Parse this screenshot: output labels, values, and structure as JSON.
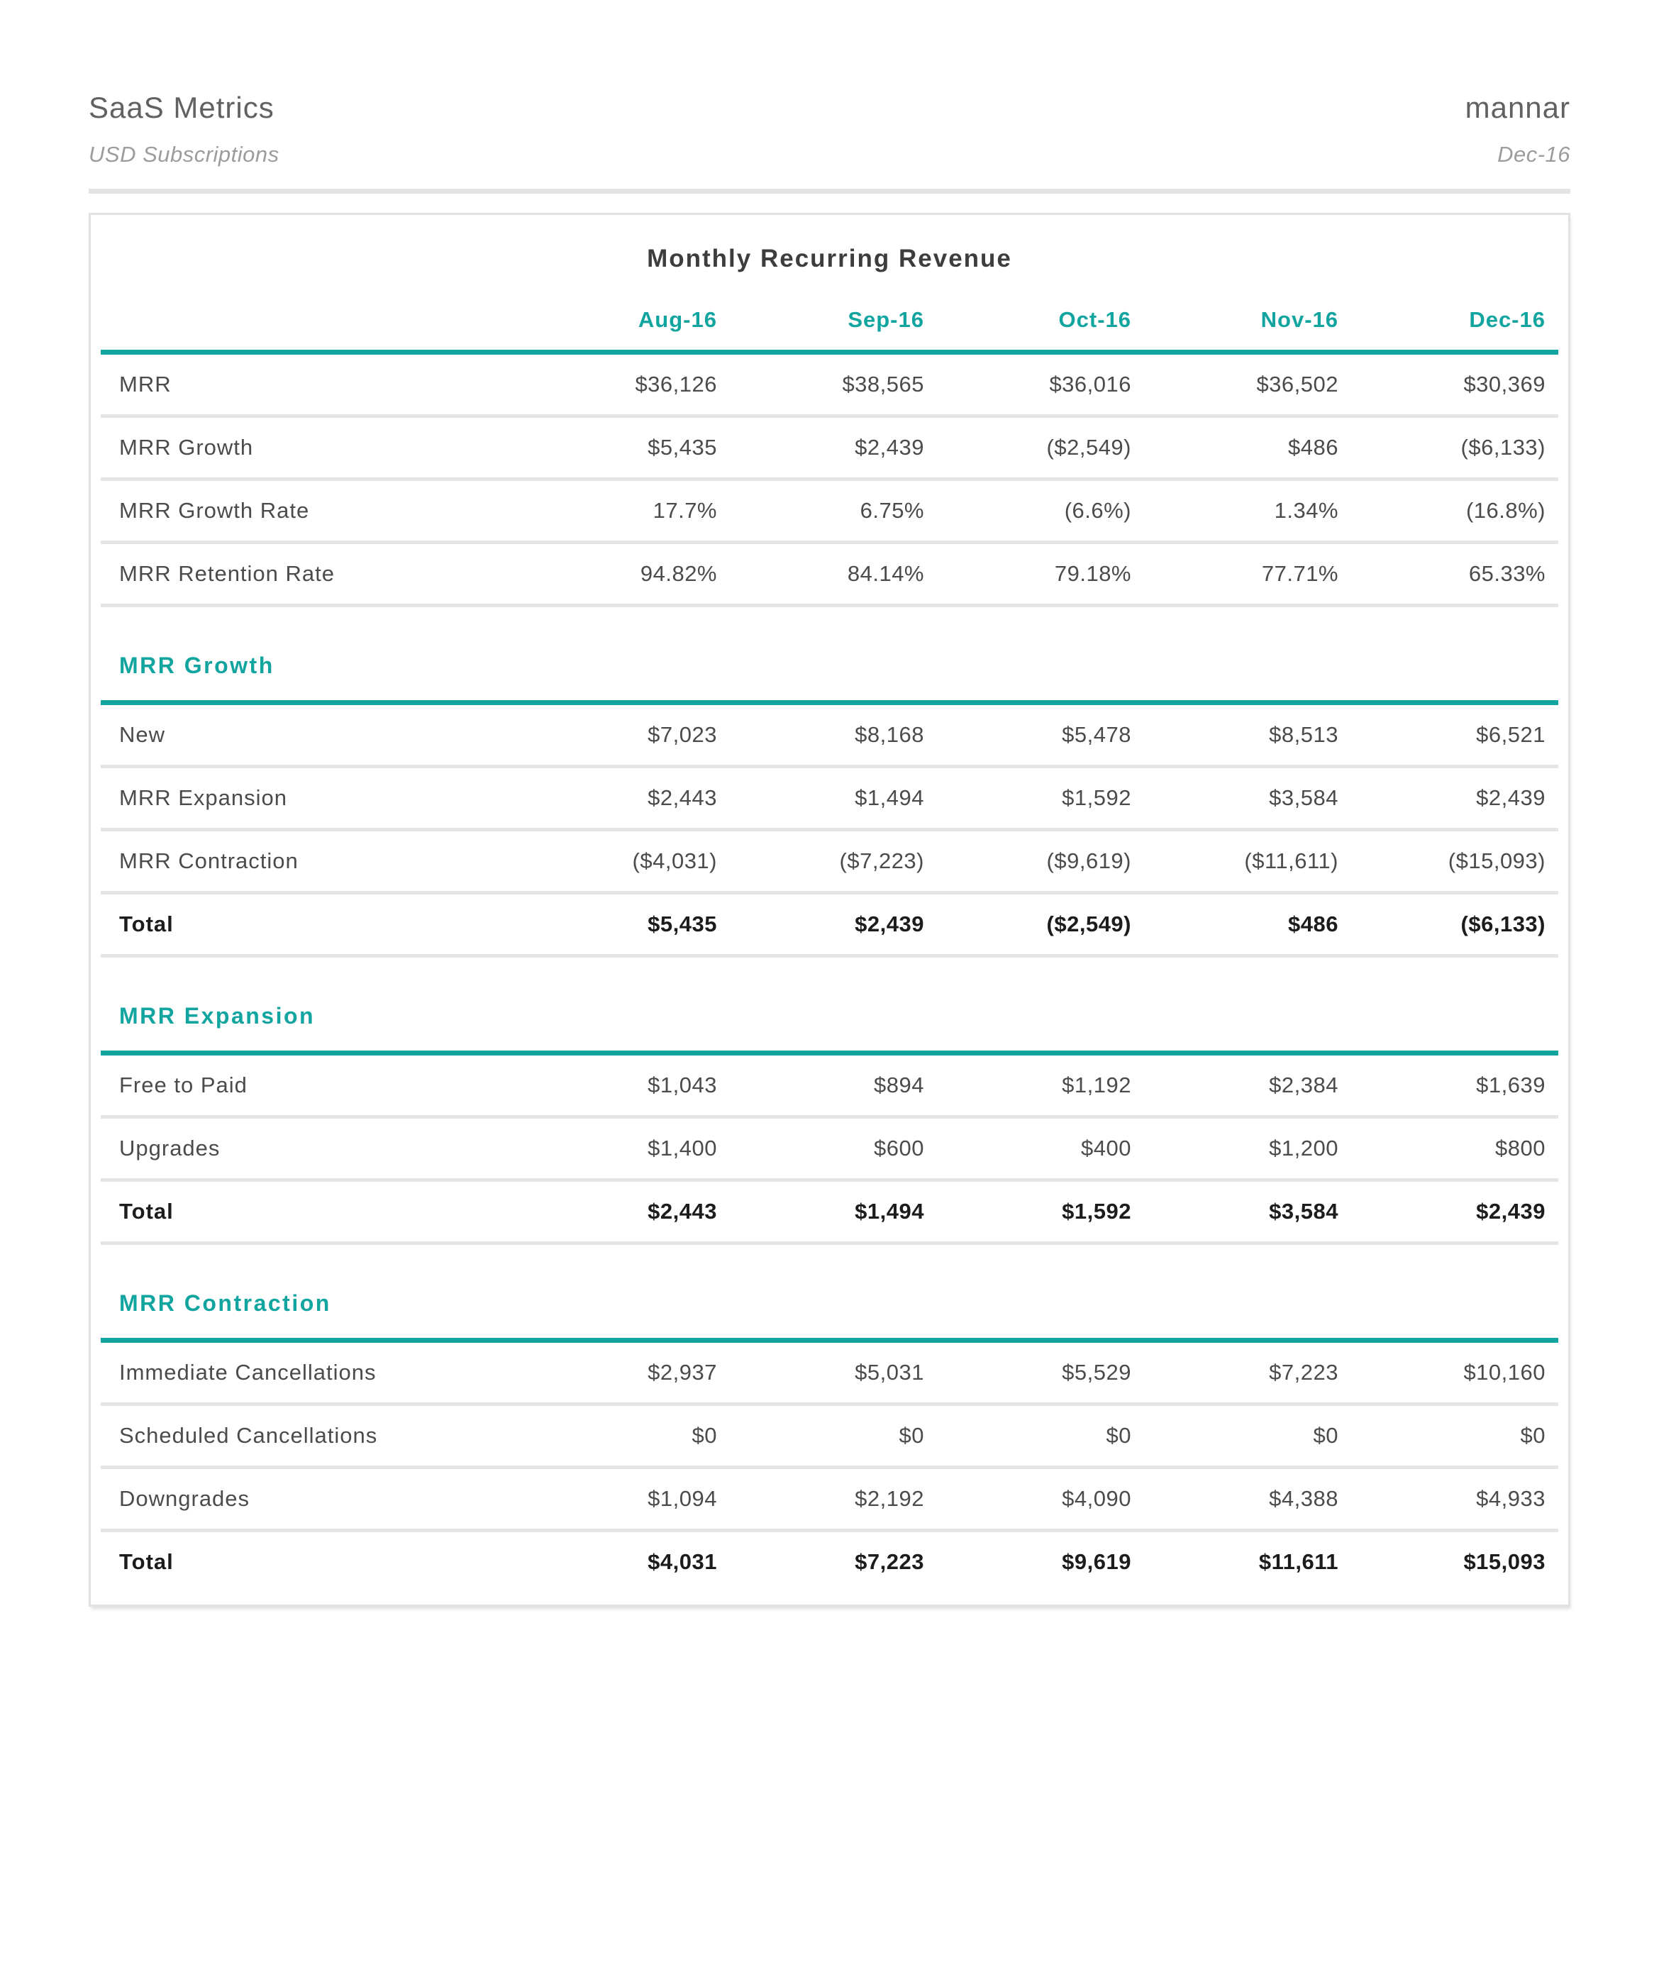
{
  "colors": {
    "accent": "#12a5a0"
  },
  "header": {
    "title": "SaaS Metrics",
    "subtitle": "USD Subscriptions",
    "company": "mannar",
    "period": "Dec-16"
  },
  "report": {
    "title": "Monthly Recurring Revenue",
    "months": [
      "Aug-16",
      "Sep-16",
      "Oct-16",
      "Nov-16",
      "Dec-16"
    ],
    "summary_rows": [
      {
        "label": "MRR",
        "values": [
          "$36,126",
          "$38,565",
          "$36,016",
          "$36,502",
          "$30,369"
        ]
      },
      {
        "label": "MRR Growth",
        "values": [
          "$5,435",
          "$2,439",
          "($2,549)",
          "$486",
          "($6,133)"
        ]
      },
      {
        "label": "MRR Growth Rate",
        "values": [
          "17.7%",
          "6.75%",
          "(6.6%)",
          "1.34%",
          "(16.8%)"
        ]
      },
      {
        "label": "MRR Retention Rate",
        "values": [
          "94.82%",
          "84.14%",
          "79.18%",
          "77.71%",
          "65.33%"
        ]
      }
    ],
    "sections": [
      {
        "heading": "MRR Growth",
        "rows": [
          {
            "label": "New",
            "values": [
              "$7,023",
              "$8,168",
              "$5,478",
              "$8,513",
              "$6,521"
            ]
          },
          {
            "label": "MRR Expansion",
            "values": [
              "$2,443",
              "$1,494",
              "$1,592",
              "$3,584",
              "$2,439"
            ]
          },
          {
            "label": "MRR Contraction",
            "values": [
              "($4,031)",
              "($7,223)",
              "($9,619)",
              "($11,611)",
              "($15,093)"
            ]
          },
          {
            "label": "Total",
            "values": [
              "$5,435",
              "$2,439",
              "($2,549)",
              "$486",
              "($6,133)"
            ],
            "total": true
          }
        ]
      },
      {
        "heading": "MRR Expansion",
        "rows": [
          {
            "label": "Free to Paid",
            "values": [
              "$1,043",
              "$894",
              "$1,192",
              "$2,384",
              "$1,639"
            ]
          },
          {
            "label": "Upgrades",
            "values": [
              "$1,400",
              "$600",
              "$400",
              "$1,200",
              "$800"
            ]
          },
          {
            "label": "Total",
            "values": [
              "$2,443",
              "$1,494",
              "$1,592",
              "$3,584",
              "$2,439"
            ],
            "total": true
          }
        ]
      },
      {
        "heading": "MRR Contraction",
        "rows": [
          {
            "label": "Immediate Cancellations",
            "values": [
              "$2,937",
              "$5,031",
              "$5,529",
              "$7,223",
              "$10,160"
            ]
          },
          {
            "label": "Scheduled Cancellations",
            "values": [
              "$0",
              "$0",
              "$0",
              "$0",
              "$0"
            ]
          },
          {
            "label": "Downgrades",
            "values": [
              "$1,094",
              "$2,192",
              "$4,090",
              "$4,388",
              "$4,933"
            ]
          },
          {
            "label": "Total",
            "values": [
              "$4,031",
              "$7,223",
              "$9,619",
              "$11,611",
              "$15,093"
            ],
            "total": true
          }
        ]
      }
    ]
  }
}
